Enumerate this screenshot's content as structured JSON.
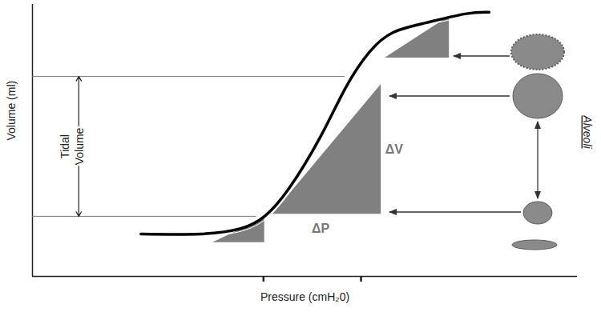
{
  "chart_data": {
    "type": "line",
    "xlabel": "Pressure (cmH₂0)",
    "ylabel": "Volume (ml)",
    "x": [
      19.9,
      30.9,
      38.2,
      42.6,
      47.1,
      52.9,
      57.4,
      61.8,
      66.2,
      72.1,
      79.4,
      83.8
    ],
    "values": [
      15.6,
      15.6,
      17.6,
      22.1,
      32.4,
      51.5,
      69.1,
      82.4,
      89.7,
      93.2,
      96.5,
      97.1
    ],
    "color": "#000000",
    "xlim": [
      0,
      100
    ],
    "ylim": [
      0,
      100
    ],
    "xticks": [
      42.4,
      60.3
    ],
    "tick_labels": false,
    "grid": false,
    "tidal_volume": {
      "label": "Tidal Volume",
      "range": [
        22.1,
        73.5
      ]
    },
    "triangle_color": "#808080",
    "triangles": [
      {
        "x": [
          33.1,
          42.6
        ],
        "y": [
          12.4,
          21.5
        ]
      },
      {
        "x": [
          44.1,
          64.0
        ],
        "y": [
          22.9,
          70.6
        ],
        "dx_label": "ΔP",
        "dy_label": "ΔV"
      },
      {
        "x": [
          64.7,
          76.5
        ],
        "y": [
          80.3,
          95.6
        ]
      }
    ],
    "alveoli_label": "Alveoli"
  }
}
